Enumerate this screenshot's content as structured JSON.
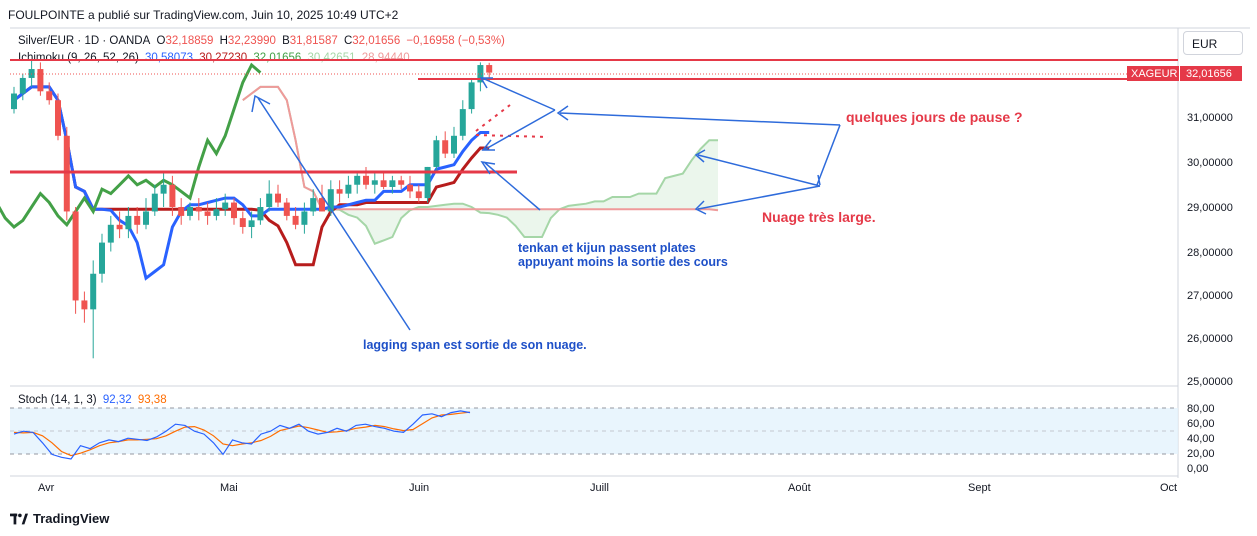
{
  "header": {
    "publisher_line": "FOULPOINTE a publié sur TradingView.com, Juin 10, 2025 10:49 UTC+2"
  },
  "legend": {
    "symbol": "Silver/EUR · 1D · OANDA",
    "o_label": "O",
    "o_value": "32,18859",
    "h_label": "H",
    "h_value": "32,23990",
    "b_label": "B",
    "b_value": "31,81587",
    "c_label": "C",
    "c_value": "32,01656",
    "change": "−0,16958 (−0,53%)",
    "ichimoku_label": "Ichimoku (9, 26, 52, 26)",
    "ichimoku_values": [
      "30,58073",
      "30,27230",
      "32,01656",
      "30,42651",
      "28,94440"
    ],
    "stoch_label": "Stoch (14, 1, 3)",
    "stoch_values": [
      "92,32",
      "93,38"
    ]
  },
  "price_axis": {
    "currency": "EUR",
    "ticks": [
      "31,00000",
      "30,00000",
      "29,00000",
      "28,00000",
      "27,00000",
      "26,00000",
      "25,00000"
    ],
    "last_price": "32,01656",
    "last_price_tag": "XAGEUR"
  },
  "stoch_axis": {
    "ticks": [
      "80,00",
      "60,00",
      "40,00",
      "20,00",
      "0,00"
    ]
  },
  "time_axis": {
    "ticks": [
      "Avr",
      "Mai",
      "Juin",
      "Juill",
      "Août",
      "Sept",
      "Oct"
    ]
  },
  "annotations": {
    "pause": "quelques jours de pause ?",
    "cloud": "Nuage très large.",
    "tenkan_line1": "tenkan et kijun passent plates",
    "tenkan_line2": "appuyant moins la sortie des cours",
    "lagging": "lagging span est sortie de son nuage."
  },
  "colors": {
    "up": "#26a69a",
    "down": "#ef5350",
    "tenkan": "#2962ff",
    "kijun": "#b71c1c",
    "lagging": "#43a047",
    "spanA": "#a5d6a7",
    "spanB": "#ef9a9a",
    "annotation_red": "#e53948",
    "annotation_blue": "#1e50c8",
    "stoch_k": "#2962ff",
    "stoch_d": "#ff6d00"
  },
  "footer": {
    "brand": "TradingView"
  },
  "chart_data": [
    {
      "type": "candlestick",
      "title": "Silver/EUR · 1D · OANDA",
      "ylim": [
        25,
        32.4
      ],
      "x": [
        "03-25",
        "03-26",
        "03-27",
        "03-28",
        "03-31",
        "04-01",
        "04-02",
        "04-03",
        "04-04",
        "04-07",
        "04-08",
        "04-09",
        "04-10",
        "04-11",
        "04-14",
        "04-15",
        "04-16",
        "04-17",
        "04-21",
        "04-22",
        "04-23",
        "04-24",
        "04-25",
        "04-28",
        "04-29",
        "04-30",
        "05-01",
        "05-02",
        "05-05",
        "05-06",
        "05-07",
        "05-08",
        "05-09",
        "05-12",
        "05-13",
        "05-14",
        "05-15",
        "05-16",
        "05-19",
        "05-20",
        "05-21",
        "05-22",
        "05-23",
        "05-26",
        "05-27",
        "05-28",
        "05-29",
        "05-30",
        "06-02",
        "06-03",
        "06-04",
        "06-05",
        "06-06",
        "06-09",
        "06-10"
      ],
      "open": [
        31.2,
        31.55,
        31.9,
        32.1,
        31.6,
        31.4,
        30.6,
        28.9,
        26.9,
        26.7,
        27.5,
        28.2,
        28.6,
        28.5,
        28.8,
        28.6,
        28.9,
        29.3,
        29.5,
        29.0,
        28.8,
        29.0,
        28.9,
        28.8,
        28.95,
        29.1,
        28.75,
        28.55,
        28.7,
        29.0,
        29.3,
        29.1,
        28.8,
        28.6,
        28.9,
        29.2,
        28.9,
        29.4,
        29.3,
        29.5,
        29.7,
        29.5,
        29.6,
        29.45,
        29.6,
        29.5,
        29.35,
        29.2,
        29.9,
        30.5,
        30.2,
        30.6,
        31.2,
        31.8,
        32.19
      ],
      "high": [
        31.7,
        32.0,
        32.3,
        32.25,
        31.8,
        31.55,
        30.8,
        29.0,
        27.1,
        27.8,
        28.4,
        28.8,
        28.9,
        29.0,
        29.0,
        29.2,
        29.5,
        29.8,
        29.7,
        29.2,
        29.1,
        29.2,
        29.1,
        29.2,
        29.3,
        29.2,
        28.9,
        28.9,
        29.2,
        29.6,
        29.5,
        29.2,
        29.0,
        29.1,
        29.4,
        29.5,
        29.6,
        29.6,
        29.7,
        29.8,
        29.9,
        29.8,
        29.8,
        29.7,
        29.7,
        29.7,
        29.5,
        29.9,
        30.6,
        30.7,
        30.8,
        31.4,
        31.9,
        32.25,
        32.24
      ],
      "low": [
        31.1,
        31.4,
        31.7,
        31.5,
        31.3,
        30.5,
        28.7,
        26.6,
        26.4,
        25.6,
        27.3,
        28.0,
        28.3,
        28.3,
        28.4,
        28.5,
        28.8,
        29.0,
        28.8,
        28.6,
        28.7,
        28.7,
        28.6,
        28.7,
        28.8,
        28.6,
        28.4,
        28.3,
        28.6,
        28.9,
        29.0,
        28.7,
        28.5,
        28.4,
        28.8,
        28.9,
        28.8,
        29.1,
        29.2,
        29.3,
        29.4,
        29.3,
        29.4,
        29.3,
        29.4,
        29.2,
        29.1,
        29.1,
        29.8,
        30.1,
        30.1,
        30.5,
        31.1,
        31.6,
        31.82
      ],
      "close": [
        31.55,
        31.9,
        32.1,
        31.6,
        31.4,
        30.6,
        28.9,
        26.9,
        26.7,
        27.5,
        28.2,
        28.6,
        28.5,
        28.8,
        28.6,
        28.9,
        29.3,
        29.5,
        29.0,
        28.8,
        29.0,
        28.9,
        28.8,
        28.95,
        29.1,
        28.75,
        28.55,
        28.7,
        29.0,
        29.3,
        29.1,
        28.8,
        28.6,
        28.9,
        29.2,
        28.9,
        29.4,
        29.3,
        29.5,
        29.7,
        29.5,
        29.6,
        29.45,
        29.6,
        29.5,
        29.35,
        29.2,
        29.9,
        30.5,
        30.2,
        30.6,
        31.2,
        31.8,
        32.19,
        32.02
      ],
      "ichimoku": {
        "tenkan_last": 30.58073,
        "kijun_last": 30.2723,
        "chikou_last": 32.01656,
        "senkou_a_last": 30.42651,
        "senkou_b_last": 28.9444
      }
    },
    {
      "type": "line",
      "title": "Stoch (14, 1, 3)",
      "ylim": [
        0,
        100
      ],
      "series": [
        {
          "name": "%K",
          "values": [
            55,
            60,
            58,
            40,
            20,
            15,
            12,
            35,
            30,
            40,
            45,
            42,
            48,
            46,
            44,
            50,
            60,
            72,
            70,
            60,
            55,
            40,
            20,
            45,
            40,
            38,
            55,
            60,
            70,
            65,
            72,
            60,
            55,
            58,
            65,
            60,
            70,
            72,
            68,
            65,
            60,
            58,
            72,
            88,
            90,
            85,
            92,
            95,
            92
          ]
        },
        {
          "name": "%D",
          "values": [
            58,
            57,
            58,
            52,
            40,
            25,
            18,
            22,
            28,
            35,
            40,
            42,
            45,
            45,
            46,
            47,
            52,
            60,
            67,
            68,
            62,
            52,
            38,
            35,
            38,
            40,
            44,
            51,
            61,
            65,
            69,
            66,
            62,
            58,
            59,
            61,
            65,
            67,
            70,
            68,
            64,
            61,
            63,
            73,
            83,
            88,
            89,
            91,
            93
          ]
        }
      ]
    }
  ]
}
